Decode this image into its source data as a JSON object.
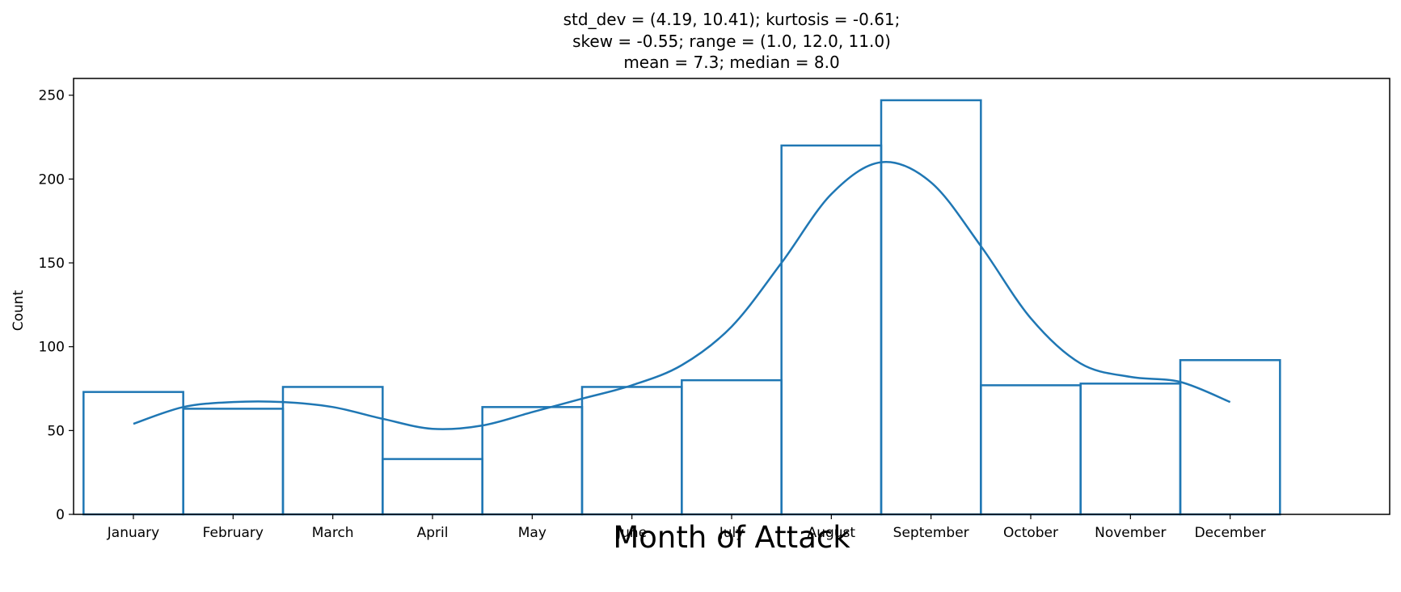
{
  "chart_data": {
    "type": "bar",
    "title_lines": [
      "std_dev = (4.19, 10.41); kurtosis = -0.61;",
      "skew = -0.55; range = (1.0, 12.0, 11.0)",
      "mean = 7.3; median = 8.0"
    ],
    "xlabel": "Month of Attack",
    "ylabel": "Count",
    "categories": [
      "January",
      "February",
      "March",
      "April",
      "May",
      "June",
      "July",
      "August",
      "September",
      "October",
      "November",
      "December"
    ],
    "values": [
      73,
      63,
      76,
      33,
      64,
      76,
      80,
      220,
      247,
      77,
      78,
      92
    ],
    "ylim": [
      0,
      260
    ],
    "yticks": [
      0,
      50,
      100,
      150,
      200,
      250
    ],
    "xlim": [
      0.4,
      13.6
    ],
    "kde": {
      "x": [
        1,
        1.5,
        2,
        2.5,
        3,
        3.5,
        4,
        4.5,
        5,
        5.5,
        6,
        6.5,
        7,
        7.5,
        8,
        8.5,
        9,
        9.5,
        10,
        10.5,
        11,
        11.5,
        12
      ],
      "y": [
        54,
        64,
        67,
        67,
        64,
        57,
        51,
        53,
        61,
        69,
        77,
        89,
        112,
        150,
        191,
        210,
        198,
        160,
        117,
        90,
        82,
        79,
        67
      ]
    },
    "color": "#1f77b4",
    "grid": false,
    "legend": "none"
  }
}
